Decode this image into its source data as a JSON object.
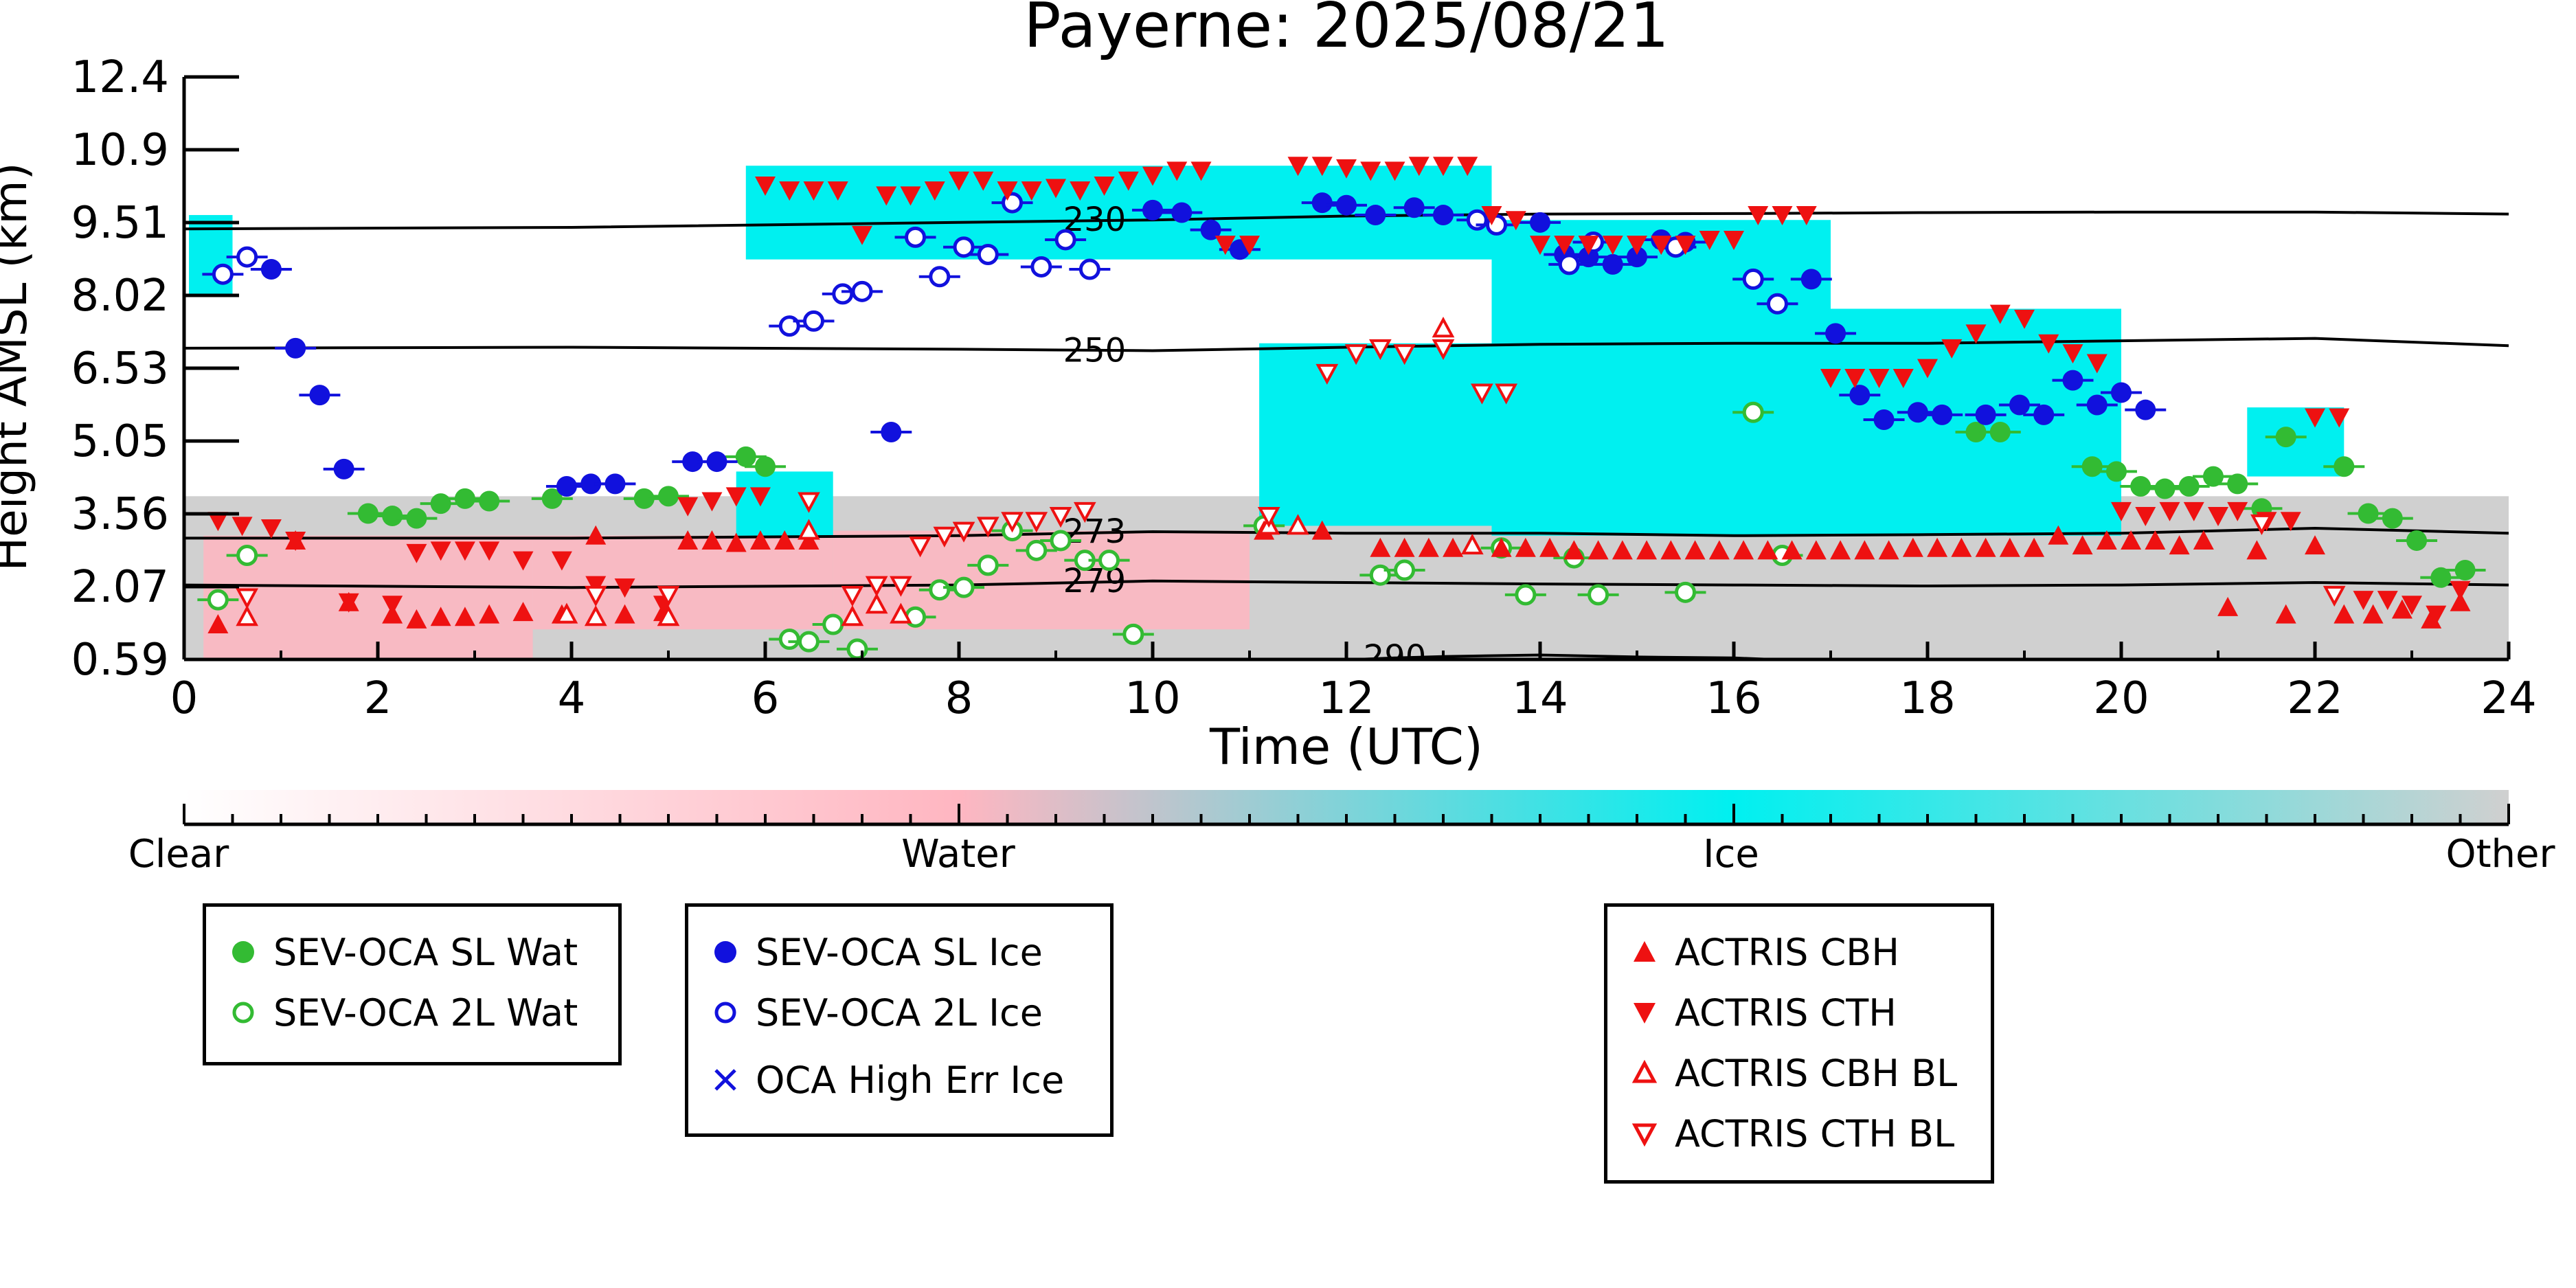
{
  "chart_data": {
    "type": "scatter",
    "title": "Payerne: 2025/08/21",
    "xlabel": "Time (UTC)",
    "ylabel": "Height AMSL (km)",
    "xlim": [
      0,
      24
    ],
    "ylim": [
      0.59,
      12.4
    ],
    "x_ticks": [
      "0",
      "2",
      "4",
      "6",
      "8",
      "10",
      "12",
      "14",
      "16",
      "18",
      "20",
      "22",
      "24"
    ],
    "y_ticks": [
      "0.59",
      "2.07",
      "3.56",
      "5.05",
      "6.53",
      "8.02",
      "9.51",
      "10.9",
      "12.4"
    ],
    "colorbar": {
      "labels": [
        "Clear",
        "Water",
        "Ice",
        "Other"
      ],
      "colors": [
        "#ffffff",
        "#ffb6c1",
        "#00f0f0",
        "#d0d0d0"
      ]
    },
    "background_classification": {
      "description_colors": {
        "water": "#ffb6c1",
        "ice": "#00f0f0",
        "other": "#d0d0d0"
      },
      "ice_regions": [
        {
          "x": [
            0.05,
            0.5
          ],
          "y": [
            8.0,
            9.6
          ]
        },
        {
          "x": [
            5.8,
            13.5
          ],
          "y": [
            8.7,
            10.6
          ]
        },
        {
          "x": [
            11.1,
            14.0
          ],
          "y": [
            3.3,
            7.0
          ]
        },
        {
          "x": [
            13.5,
            17.0
          ],
          "y": [
            3.1,
            9.5
          ]
        },
        {
          "x": [
            17.0,
            20.0
          ],
          "y": [
            3.1,
            7.7
          ]
        },
        {
          "x": [
            21.3,
            22.3
          ],
          "y": [
            4.3,
            5.7
          ]
        },
        {
          "x": [
            5.7,
            6.7
          ],
          "y": [
            3.1,
            4.4
          ]
        }
      ],
      "water_regions": [
        {
          "x": [
            0.2,
            3.6
          ],
          "y": [
            0.6,
            3.1
          ]
        },
        {
          "x": [
            3.6,
            6.7
          ],
          "y": [
            1.2,
            3.1
          ]
        },
        {
          "x": [
            6.7,
            11.0
          ],
          "y": [
            1.2,
            3.2
          ]
        }
      ],
      "other_region": {
        "x": [
          0,
          24
        ],
        "y": [
          0.59,
          3.9
        ]
      }
    },
    "temperature_contours": [
      {
        "label": "230",
        "points": [
          [
            0,
            9.32
          ],
          [
            4,
            9.35
          ],
          [
            8,
            9.45
          ],
          [
            10,
            9.5
          ],
          [
            12,
            9.58
          ],
          [
            14,
            9.62
          ],
          [
            16,
            9.63
          ],
          [
            18,
            9.65
          ],
          [
            20,
            9.66
          ],
          [
            22,
            9.66
          ],
          [
            24,
            9.62
          ]
        ]
      },
      {
        "label": "250",
        "points": [
          [
            0,
            6.9
          ],
          [
            4,
            6.92
          ],
          [
            8,
            6.88
          ],
          [
            10,
            6.85
          ],
          [
            12,
            6.92
          ],
          [
            14,
            6.98
          ],
          [
            16,
            7.0
          ],
          [
            18,
            7.0
          ],
          [
            20,
            7.05
          ],
          [
            22,
            7.1
          ],
          [
            24,
            6.95
          ]
        ]
      },
      {
        "label": "273",
        "points": [
          [
            0,
            3.05
          ],
          [
            4,
            3.05
          ],
          [
            8,
            3.1
          ],
          [
            10,
            3.18
          ],
          [
            12,
            3.15
          ],
          [
            14,
            3.15
          ],
          [
            16,
            3.1
          ],
          [
            18,
            3.12
          ],
          [
            20,
            3.15
          ],
          [
            22,
            3.25
          ],
          [
            24,
            3.15
          ]
        ]
      },
      {
        "label": "279",
        "points": [
          [
            0,
            2.1
          ],
          [
            4,
            2.05
          ],
          [
            8,
            2.1
          ],
          [
            10,
            2.18
          ],
          [
            12,
            2.15
          ],
          [
            14,
            2.12
          ],
          [
            16,
            2.1
          ],
          [
            18,
            2.08
          ],
          [
            20,
            2.1
          ],
          [
            22,
            2.15
          ],
          [
            24,
            2.1
          ]
        ]
      },
      {
        "label": "290",
        "points": [
          [
            12.1,
            0.59
          ],
          [
            12.5,
            0.62
          ],
          [
            13,
            0.65
          ],
          [
            14,
            0.68
          ],
          [
            15,
            0.64
          ],
          [
            16,
            0.62
          ],
          [
            16.4,
            0.59
          ]
        ]
      }
    ],
    "series": [
      {
        "name": "SEV-OCA SL Wat",
        "marker": "circle-filled",
        "color": "#33bb33",
        "x": [
          1.9,
          2.15,
          2.4,
          2.65,
          2.9,
          3.15,
          3.8,
          4.75,
          5.0,
          5.8,
          6.0,
          18.5,
          18.75,
          19.7,
          19.95,
          20.2,
          20.45,
          20.7,
          20.95,
          21.2,
          21.45,
          21.7,
          22.3,
          22.55,
          22.8,
          23.05,
          23.3,
          23.55
        ],
        "y": [
          3.55,
          3.5,
          3.45,
          3.75,
          3.85,
          3.8,
          3.85,
          3.85,
          3.9,
          4.7,
          4.5,
          5.2,
          5.2,
          4.5,
          4.4,
          4.1,
          4.05,
          4.1,
          4.3,
          4.15,
          3.65,
          5.1,
          4.5,
          3.55,
          3.45,
          3.0,
          2.25,
          2.4
        ]
      },
      {
        "name": "SEV-OCA 2L Wat",
        "marker": "circle-open",
        "color": "#33bb33",
        "x": [
          0.35,
          0.65,
          6.25,
          6.45,
          6.7,
          6.95,
          7.55,
          7.8,
          8.05,
          8.3,
          8.55,
          8.8,
          9.05,
          9.3,
          9.55,
          9.8,
          11.15,
          12.35,
          12.6,
          13.6,
          13.85,
          14.35,
          14.6,
          15.5,
          16.2,
          16.5
        ],
        "y": [
          1.8,
          2.7,
          1.0,
          0.95,
          1.3,
          0.8,
          1.45,
          2.0,
          2.05,
          2.5,
          3.2,
          2.8,
          3.0,
          2.6,
          2.6,
          1.1,
          3.3,
          2.3,
          2.4,
          2.85,
          1.9,
          2.65,
          1.9,
          1.95,
          5.6,
          2.7
        ]
      },
      {
        "name": "SEV-OCA SL Ice",
        "marker": "circle-filled",
        "color": "#1111dd",
        "x": [
          0.9,
          1.15,
          1.4,
          1.65,
          3.95,
          4.2,
          4.45,
          5.25,
          5.5,
          7.3,
          10.0,
          10.3,
          10.6,
          10.9,
          11.75,
          12.0,
          12.3,
          12.7,
          13.0,
          14.0,
          14.25,
          14.5,
          14.75,
          15.0,
          15.25,
          15.5,
          16.8,
          17.05,
          17.3,
          17.55,
          17.9,
          18.15,
          18.6,
          18.95,
          19.2,
          19.5,
          19.75,
          20.0,
          20.25
        ],
        "y": [
          8.5,
          6.9,
          5.95,
          4.45,
          4.1,
          4.15,
          4.15,
          4.6,
          4.6,
          5.2,
          9.7,
          9.65,
          9.3,
          8.9,
          9.85,
          9.8,
          9.6,
          9.75,
          9.6,
          9.45,
          8.8,
          8.75,
          8.6,
          8.75,
          9.1,
          9.05,
          8.3,
          7.2,
          5.95,
          5.45,
          5.6,
          5.55,
          5.55,
          5.75,
          5.55,
          6.25,
          5.75,
          6.0,
          5.65
        ]
      },
      {
        "name": "SEV-OCA 2L Ice",
        "marker": "circle-open",
        "color": "#1111dd",
        "x": [
          0.4,
          0.65,
          6.25,
          6.5,
          6.8,
          7.0,
          7.55,
          7.8,
          8.05,
          8.3,
          8.55,
          8.85,
          9.1,
          9.35,
          13.35,
          13.55,
          14.3,
          14.55,
          15.4,
          16.2,
          16.45
        ],
        "y": [
          8.4,
          8.75,
          7.35,
          7.45,
          8.0,
          8.05,
          9.15,
          8.35,
          8.95,
          8.8,
          9.85,
          8.55,
          9.1,
          8.5,
          9.5,
          9.4,
          8.6,
          9.05,
          8.95,
          8.3,
          7.8
        ]
      },
      {
        "name": "OCA High Err Ice",
        "marker": "x",
        "color": "#1111dd",
        "x": [],
        "y": []
      },
      {
        "name": "ACTRIS CBH",
        "marker": "triangle-up-filled",
        "color": "#ee1111",
        "x": [
          0.35,
          1.15,
          1.7,
          2.15,
          2.4,
          2.65,
          2.9,
          3.15,
          3.5,
          3.9,
          4.25,
          4.55,
          4.95,
          5.2,
          5.45,
          5.7,
          5.95,
          6.2,
          6.45,
          11.15,
          11.75,
          12.35,
          12.6,
          12.85,
          13.1,
          13.6,
          13.85,
          14.1,
          14.35,
          14.6,
          14.85,
          15.1,
          15.35,
          15.6,
          15.85,
          16.1,
          16.35,
          16.6,
          16.85,
          17.1,
          17.35,
          17.6,
          17.85,
          18.1,
          18.35,
          18.6,
          18.85,
          19.1,
          19.35,
          19.6,
          19.85,
          20.1,
          20.35,
          20.6,
          20.85,
          21.1,
          21.4,
          21.7,
          22.0,
          22.3,
          22.6,
          22.9,
          23.2,
          23.5
        ],
        "y": [
          1.3,
          3.0,
          1.75,
          1.5,
          1.4,
          1.45,
          1.45,
          1.5,
          1.55,
          1.5,
          3.1,
          1.5,
          1.55,
          3.0,
          3.0,
          2.95,
          3.0,
          3.0,
          3.0,
          3.2,
          3.2,
          2.85,
          2.85,
          2.85,
          2.85,
          2.85,
          2.85,
          2.85,
          2.8,
          2.8,
          2.8,
          2.8,
          2.8,
          2.8,
          2.8,
          2.8,
          2.8,
          2.8,
          2.8,
          2.8,
          2.8,
          2.8,
          2.85,
          2.85,
          2.85,
          2.85,
          2.85,
          2.85,
          3.1,
          2.9,
          3.0,
          3.0,
          3.0,
          2.9,
          3.0,
          1.65,
          2.8,
          1.5,
          2.9,
          1.5,
          1.5,
          1.6,
          1.4,
          1.75
        ]
      },
      {
        "name": "ACTRIS CTH",
        "marker": "triangle-down-filled",
        "color": "#ee1111",
        "x": [
          0.35,
          0.6,
          0.9,
          1.15,
          1.7,
          2.15,
          2.4,
          2.65,
          2.9,
          3.15,
          3.5,
          3.9,
          4.25,
          4.55,
          4.95,
          5.2,
          5.45,
          5.7,
          5.95,
          6.0,
          6.25,
          6.5,
          6.75,
          7.0,
          7.25,
          7.5,
          7.75,
          8.0,
          8.25,
          8.5,
          8.75,
          9.0,
          9.25,
          9.5,
          9.75,
          10.0,
          10.25,
          10.5,
          10.75,
          11.0,
          11.5,
          11.75,
          12.0,
          12.25,
          12.5,
          12.75,
          13.0,
          13.25,
          13.5,
          13.75,
          14.0,
          14.25,
          14.5,
          14.75,
          15.0,
          15.25,
          15.5,
          15.75,
          16.0,
          16.25,
          16.5,
          16.75,
          17.0,
          17.25,
          17.5,
          17.75,
          18.0,
          18.25,
          18.5,
          18.75,
          19.0,
          19.25,
          19.5,
          19.75,
          20.0,
          20.25,
          20.5,
          20.75,
          21.0,
          21.2,
          21.5,
          21.75,
          22.0,
          22.25,
          22.5,
          22.75,
          23.0,
          23.25,
          23.5
        ],
        "y": [
          3.4,
          3.3,
          3.25,
          3.0,
          1.75,
          1.7,
          2.75,
          2.8,
          2.8,
          2.8,
          2.6,
          2.6,
          2.1,
          2.05,
          1.7,
          3.7,
          3.8,
          3.9,
          3.9,
          10.2,
          10.1,
          10.1,
          10.1,
          9.2,
          10.0,
          10.0,
          10.1,
          10.3,
          10.3,
          10.1,
          10.1,
          10.15,
          10.1,
          10.2,
          10.3,
          10.4,
          10.5,
          10.5,
          9.0,
          9.0,
          10.6,
          10.6,
          10.55,
          10.5,
          10.5,
          10.6,
          10.6,
          10.6,
          9.6,
          9.5,
          9.0,
          9.0,
          9.0,
          9.0,
          9.0,
          9.0,
          9.0,
          9.1,
          9.1,
          9.6,
          9.6,
          9.6,
          6.3,
          6.3,
          6.3,
          6.3,
          6.5,
          6.9,
          7.2,
          7.6,
          7.5,
          7.0,
          6.8,
          6.6,
          3.6,
          3.5,
          3.6,
          3.6,
          3.5,
          3.6,
          3.4,
          3.4,
          5.5,
          5.5,
          1.8,
          1.8,
          1.7,
          1.5,
          2.0
        ]
      },
      {
        "name": "ACTRIS CBH BL",
        "marker": "triangle-up-open",
        "color": "#ee1111",
        "x": [
          0.65,
          3.95,
          4.25,
          5.0,
          6.45,
          6.9,
          7.15,
          7.4,
          11.2,
          11.5,
          13.0,
          13.3
        ],
        "y": [
          1.45,
          1.5,
          1.45,
          1.45,
          3.2,
          1.45,
          1.7,
          1.5,
          3.3,
          3.3,
          7.3,
          2.9
        ],
        "note": "open triangles"
      },
      {
        "name": "ACTRIS CTH BL",
        "marker": "triangle-down-open",
        "color": "#ee1111",
        "x": [
          0.65,
          4.25,
          5.0,
          6.45,
          6.9,
          7.15,
          7.4,
          7.6,
          7.85,
          8.05,
          8.3,
          8.55,
          8.8,
          9.05,
          9.3,
          11.2,
          11.8,
          12.1,
          12.35,
          12.6,
          13.0,
          13.4,
          13.65,
          21.45,
          22.2
        ],
        "y": [
          1.85,
          1.9,
          1.9,
          3.8,
          1.9,
          2.1,
          2.1,
          2.9,
          3.1,
          3.2,
          3.3,
          3.4,
          3.4,
          3.5,
          3.6,
          3.5,
          6.4,
          6.8,
          6.9,
          6.8,
          6.9,
          6.0,
          6.0,
          3.35,
          1.9
        ]
      }
    ]
  },
  "legend": {
    "group1": {
      "items": [
        "SEV-OCA SL Wat",
        "SEV-OCA 2L Wat"
      ]
    },
    "group2": {
      "items": [
        "SEV-OCA SL Ice",
        "SEV-OCA 2L Ice",
        "OCA High Err Ice"
      ]
    },
    "group3": {
      "items": [
        "ACTRIS CBH",
        "ACTRIS CTH",
        "ACTRIS CBH BL",
        "ACTRIS CTH BL"
      ]
    }
  }
}
